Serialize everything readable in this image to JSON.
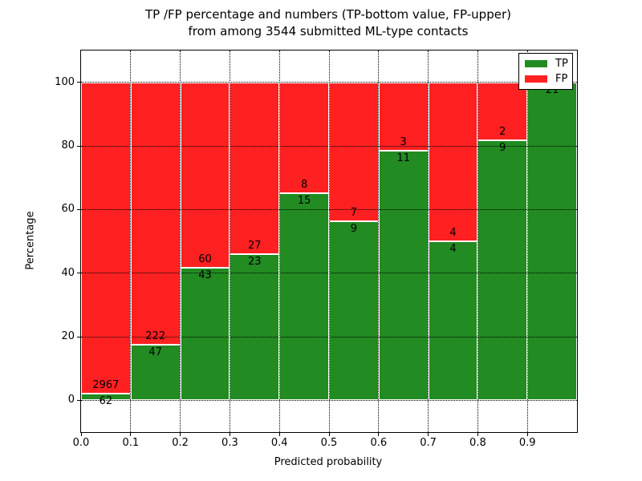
{
  "figure": {
    "title_line1": "TP /FP percentage and numbers (TP-bottom value, FP-upper)",
    "title_line2": "from among 3544 submitted ML-type contacts",
    "xlabel": "Predicted probability",
    "ylabel": "Percentage"
  },
  "chart_data": {
    "type": "bar",
    "stacked": true,
    "title": "TP /FP percentage and numbers (TP-bottom value, FP-upper) from among 3544 submitted ML-type contacts",
    "xlabel": "Predicted probability",
    "ylabel": "Percentage",
    "total_contacts": 3544,
    "bins": [
      "0.0-0.1",
      "0.1-0.2",
      "0.2-0.3",
      "0.3-0.4",
      "0.4-0.5",
      "0.5-0.6",
      "0.6-0.7",
      "0.7-0.8",
      "0.8-0.9",
      "0.9-1.0"
    ],
    "x_tick_labels": [
      "0.0",
      "0.1",
      "0.2",
      "0.3",
      "0.4",
      "0.5",
      "0.6",
      "0.7",
      "0.8",
      "0.9"
    ],
    "y_ticks": [
      0,
      20,
      40,
      60,
      80,
      100
    ],
    "xlim": [
      0.0,
      1.0
    ],
    "ylim": [
      -10,
      110
    ],
    "grid": true,
    "series": [
      {
        "name": "TP",
        "color": "#228b22",
        "counts": [
          62,
          47,
          43,
          23,
          15,
          9,
          11,
          4,
          9,
          21
        ]
      },
      {
        "name": "FP",
        "color": "#ff2121",
        "counts": [
          2967,
          222,
          60,
          27,
          8,
          7,
          3,
          4,
          2,
          0
        ]
      }
    ],
    "tp_percent": [
      2.05,
      17.47,
      41.75,
      46.0,
      65.22,
      56.25,
      78.57,
      50.0,
      81.82,
      100.0
    ],
    "legend": {
      "position": "upper right",
      "entries": [
        {
          "label": "TP",
          "color": "#228b22"
        },
        {
          "label": "FP",
          "color": "#ff2121"
        }
      ]
    },
    "colors": {
      "tp": "#228b22",
      "fp": "#ff2121",
      "background": "#ffffff",
      "grid": "#000000"
    }
  }
}
